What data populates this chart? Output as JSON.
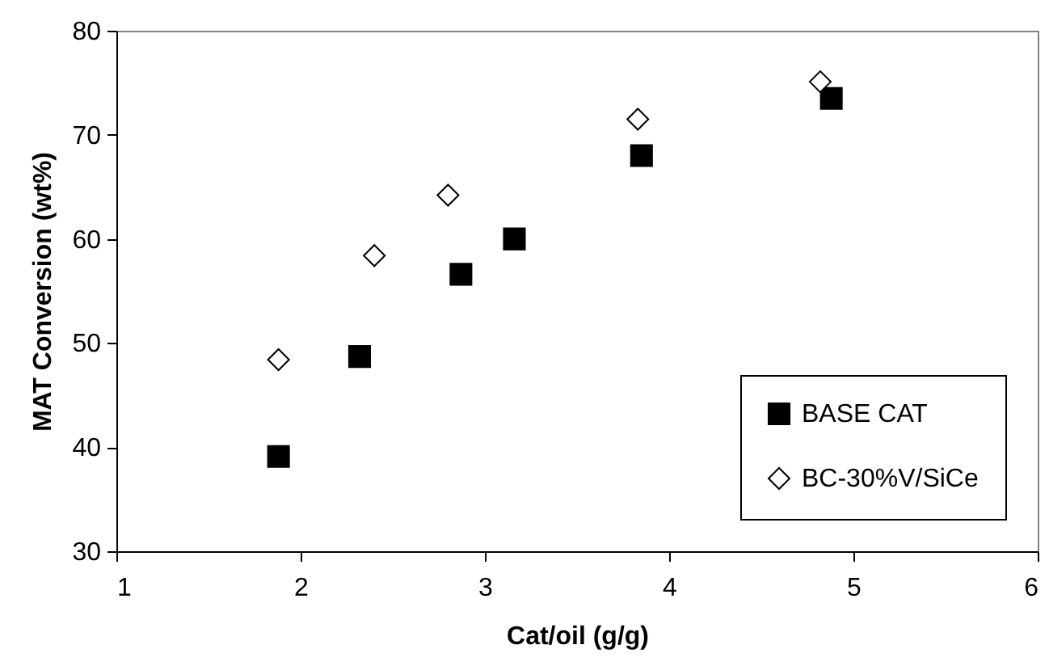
{
  "chart_data": {
    "type": "scatter",
    "xlabel": "Cat/oil (g/g)",
    "ylabel": "MAT Conversion (wt%)",
    "xlim": [
      1,
      6
    ],
    "xticks": [
      1,
      2,
      3,
      4,
      5,
      6
    ],
    "ylim": [
      30,
      80
    ],
    "yticks": [
      30,
      40,
      50,
      60,
      70,
      80
    ],
    "grid": false,
    "legend": "bottom right",
    "series": [
      {
        "name": "BASE CAT",
        "color": "#000000",
        "marker": "square",
        "x": [
          1.88,
          2.32,
          2.87,
          3.16,
          3.85,
          4.88
        ],
        "values": [
          39.1,
          48.7,
          56.6,
          60.0,
          68.0,
          73.5
        ]
      },
      {
        "name": "BC-30%V/SiCe",
        "color": "#000000",
        "marker": "diamond",
        "x": [
          1.88,
          2.4,
          2.8,
          3.83,
          4.82
        ],
        "values": [
          48.4,
          58.4,
          64.2,
          71.5,
          75.1
        ]
      }
    ]
  }
}
